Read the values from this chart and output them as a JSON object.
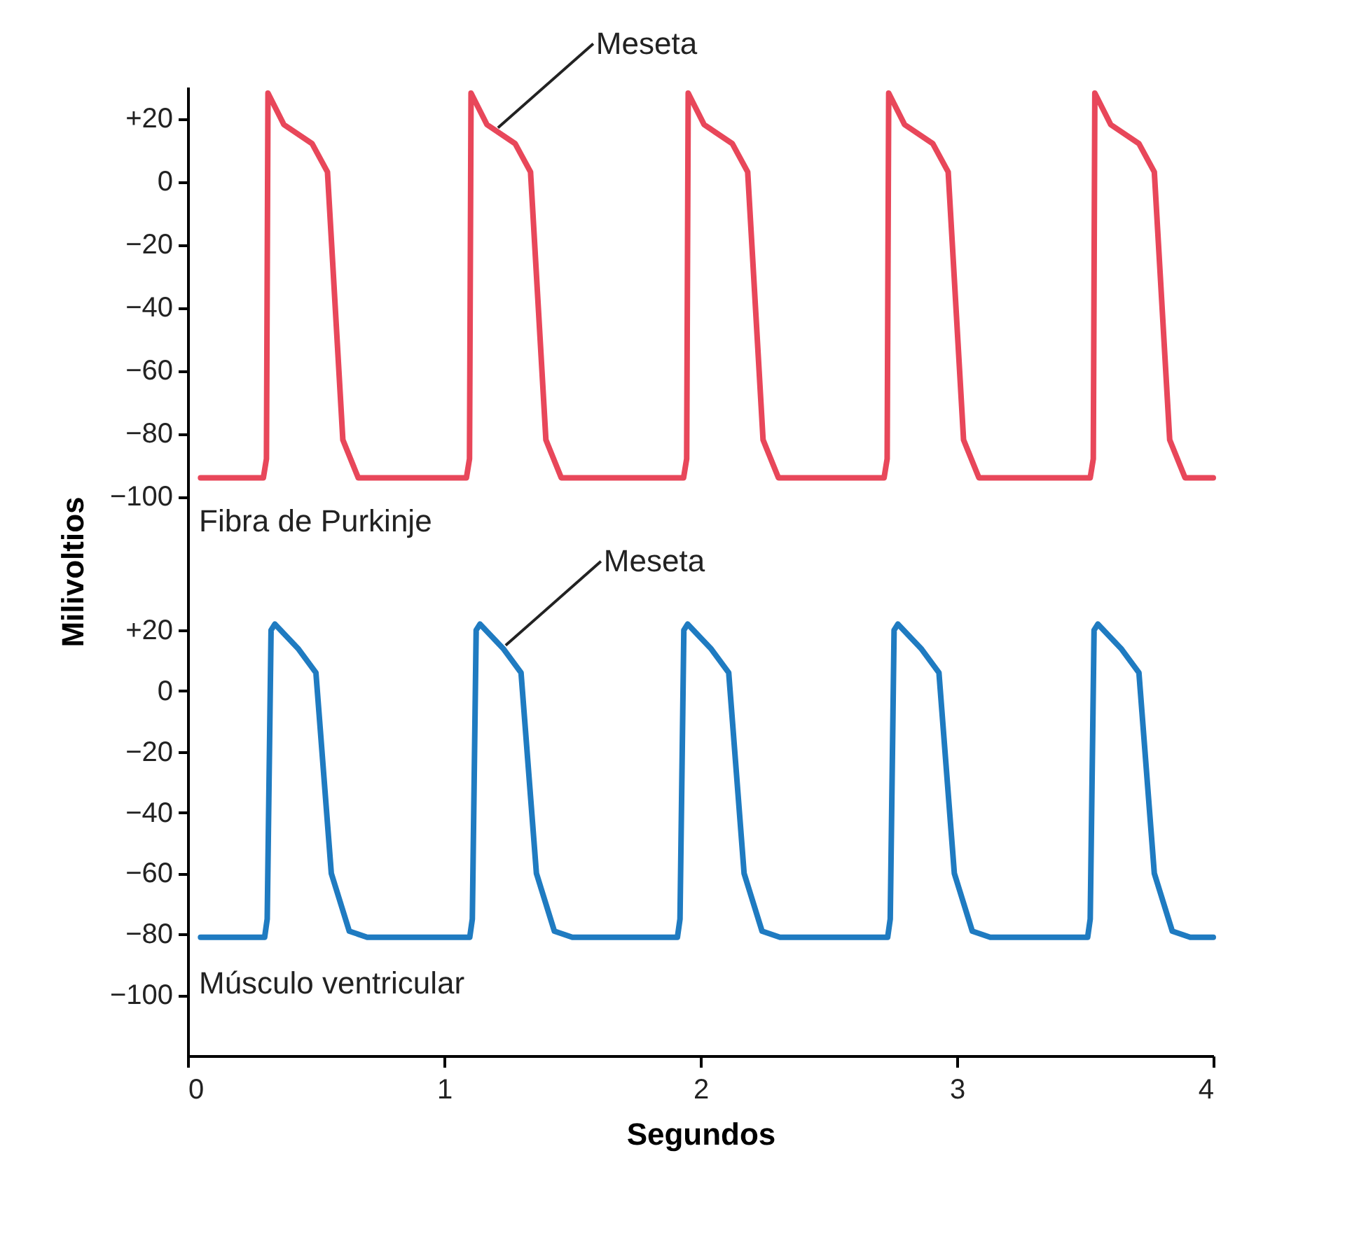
{
  "chart_data": [
    {
      "type": "line",
      "ylabel": "Milivoltios",
      "xlim": [
        0,
        4
      ],
      "ylim": [
        -125,
        30
      ],
      "tick_labels": "y",
      "grid": false,
      "marker": "none",
      "line_style": "solid",
      "yticks": [
        {
          "value": 20,
          "label": "+20"
        },
        0,
        {
          "value": -20,
          "label": "−20"
        },
        {
          "value": -40,
          "label": "−40"
        },
        {
          "value": -60,
          "label": "−60"
        },
        {
          "value": -80,
          "label": "−80"
        },
        {
          "value": -100,
          "label": "−100"
        }
      ],
      "annotations": [
        {
          "text": "Meseta",
          "x": 1.21,
          "y": 17
        },
        "Fibra de Purkinje"
      ],
      "series": [
        {
          "color": "#e8475a",
          "x": [
            0.05,
            0.295,
            0.307,
            0.313,
            0.375,
            0.485,
            0.545,
            0.605,
            0.665,
            1.087,
            1.099,
            1.105,
            1.167,
            1.277,
            1.337,
            1.397,
            1.457,
            1.934,
            1.946,
            1.952,
            2.014,
            2.124,
            2.184,
            2.244,
            2.304,
            2.716,
            2.728,
            2.734,
            2.796,
            2.906,
            2.966,
            3.026,
            3.086,
            3.52,
            3.532,
            3.538,
            3.6,
            3.71,
            3.77,
            3.83,
            3.89,
            4.0
          ],
          "values": [
            -94,
            -94,
            -88,
            28,
            18,
            12,
            3,
            -82,
            -94,
            -94,
            -88,
            28,
            18,
            12,
            3,
            -82,
            -94,
            -94,
            -88,
            28,
            18,
            12,
            3,
            -82,
            -94,
            -94,
            -88,
            28,
            18,
            12,
            3,
            -82,
            -94,
            -94,
            -88,
            28,
            18,
            12,
            3,
            -82,
            -94,
            -94
          ]
        }
      ]
    },
    {
      "type": "line",
      "xlabel": "Segundos",
      "xlim": [
        0,
        4
      ],
      "ylim": [
        -120,
        38
      ],
      "xticks": [
        0,
        1,
        2,
        3,
        4
      ],
      "grid": false,
      "marker": "none",
      "line_style": "solid",
      "yticks": [
        {
          "value": 20,
          "label": "+20"
        },
        0,
        {
          "value": -20,
          "label": "−20"
        },
        {
          "value": -40,
          "label": "−40"
        },
        {
          "value": -60,
          "label": "−60"
        },
        {
          "value": -80,
          "label": "−80"
        },
        {
          "value": -100,
          "label": "−100"
        }
      ],
      "annotations": [
        {
          "text": "Meseta",
          "x": 1.24,
          "y": 15
        },
        "Músculo ventricular"
      ],
      "series": [
        {
          "color": "#1f7bc1",
          "x": [
            0.05,
            0.3,
            0.31,
            0.325,
            0.34,
            0.43,
            0.5,
            0.56,
            0.63,
            0.7,
            1.1,
            1.11,
            1.125,
            1.14,
            1.23,
            1.3,
            1.36,
            1.43,
            1.5,
            1.91,
            1.92,
            1.935,
            1.95,
            2.04,
            2.11,
            2.17,
            2.24,
            2.31,
            2.73,
            2.74,
            2.755,
            2.77,
            2.86,
            2.93,
            2.99,
            3.06,
            3.13,
            3.51,
            3.52,
            3.535,
            3.55,
            3.64,
            3.71,
            3.77,
            3.84,
            3.91,
            4.0
          ],
          "values": [
            -81,
            -81,
            -75,
            20,
            22,
            14,
            6,
            -60,
            -79,
            -81,
            -81,
            -75,
            20,
            22,
            14,
            6,
            -60,
            -79,
            -81,
            -81,
            -75,
            20,
            22,
            14,
            6,
            -60,
            -79,
            -81,
            -81,
            -75,
            20,
            22,
            14,
            6,
            -60,
            -79,
            -81,
            -81,
            -75,
            20,
            22,
            14,
            6,
            -60,
            -79,
            -81,
            -81
          ]
        }
      ]
    }
  ]
}
